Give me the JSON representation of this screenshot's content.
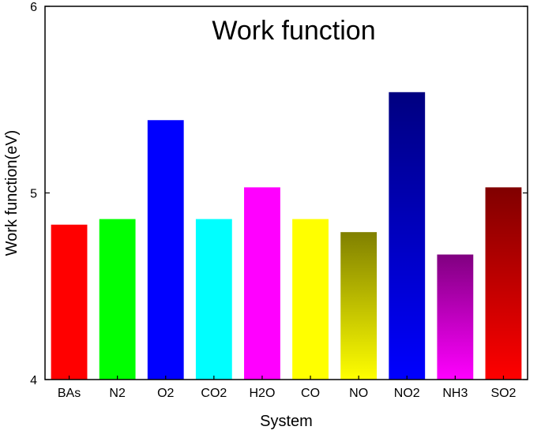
{
  "chart_data": {
    "type": "bar",
    "title": "Work function",
    "xlabel": "System",
    "ylabel": "Work function(eV)",
    "categories": [
      "BAs",
      "N2",
      "O2",
      "CO2",
      "H2O",
      "CO",
      "NO",
      "NO2",
      "NH3",
      "SO2"
    ],
    "values": [
      4.83,
      4.86,
      5.39,
      4.86,
      5.03,
      4.86,
      4.79,
      5.54,
      4.67,
      5.03
    ],
    "ylim": [
      4,
      6
    ],
    "yticks": [
      "4",
      "5",
      "6"
    ],
    "grid": false,
    "legend": "none",
    "bar_colors": [
      {
        "top": "#ff0000",
        "bottom": "#ff0000"
      },
      {
        "top": "#00ff00",
        "bottom": "#00ff00"
      },
      {
        "top": "#0000ff",
        "bottom": "#0000ff"
      },
      {
        "top": "#00ffff",
        "bottom": "#00ffff"
      },
      {
        "top": "#ff00ff",
        "bottom": "#ff00ff"
      },
      {
        "top": "#ffff00",
        "bottom": "#ffff00"
      },
      {
        "top": "#808000",
        "bottom": "#ffff00"
      },
      {
        "top": "#000080",
        "bottom": "#0000ff"
      },
      {
        "top": "#800080",
        "bottom": "#ff00ff"
      },
      {
        "top": "#800000",
        "bottom": "#ff0000"
      }
    ]
  }
}
